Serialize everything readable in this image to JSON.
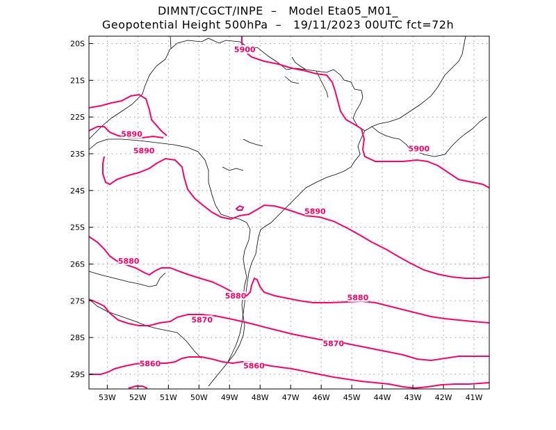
{
  "header": {
    "line1": "DIMNT/CGCT/INPE  –   Model Eta05_M01_",
    "line2": "Geopotential Height 500hPa  –   19/11/2023 00UTC fct=72h"
  },
  "map": {
    "lon_range": [
      -53.6,
      -40.5
    ],
    "lat_range": [
      -29.4,
      -19.8
    ],
    "lon_ticks": [
      "53W",
      "52W",
      "51W",
      "50W",
      "49W",
      "48W",
      "47W",
      "46W",
      "45W",
      "44W",
      "43W",
      "42W",
      "41W"
    ],
    "lat_ticks": [
      "20S",
      "21S",
      "22S",
      "23S",
      "24S",
      "25S",
      "26S",
      "27S",
      "28S",
      "29S"
    ],
    "contour_color": "#ff0066",
    "coast_color": "#000000",
    "grid_color": "#999999"
  },
  "contours": {
    "labels": [
      {
        "text": "5900",
        "lon": -48.5,
        "lat": -20.2
      },
      {
        "text": "5900",
        "lon": -42.8,
        "lat": -22.9
      },
      {
        "text": "5890",
        "lon": -52.2,
        "lat": -22.5
      },
      {
        "text": "5890",
        "lon": -51.8,
        "lat": -22.95
      },
      {
        "text": "5890",
        "lon": -46.2,
        "lat": -24.6
      },
      {
        "text": "5880",
        "lon": -52.3,
        "lat": -25.95
      },
      {
        "text": "5880",
        "lon": -48.8,
        "lat": -26.9
      },
      {
        "text": "5880",
        "lon": -44.8,
        "lat": -26.95
      },
      {
        "text": "5870",
        "lon": -49.9,
        "lat": -27.55
      },
      {
        "text": "5870",
        "lon": -45.6,
        "lat": -28.2
      },
      {
        "text": "5860",
        "lon": -51.6,
        "lat": -28.75
      },
      {
        "text": "5860",
        "lon": -48.2,
        "lat": -28.8
      }
    ]
  }
}
